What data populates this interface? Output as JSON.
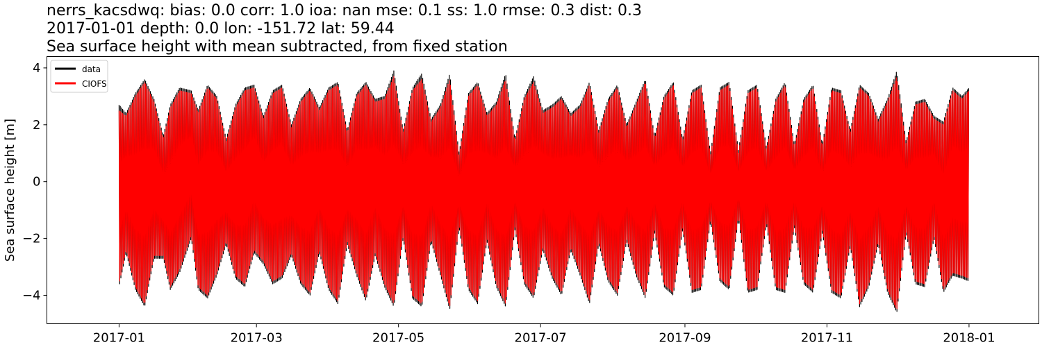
{
  "title_lines": [
    "nerrs_kacsdwq: bias: 0.0  corr: 1.0  ioa: nan  mse: 0.1  ss: 1.0  rmse: 0.3  dist: 0.3",
    "2017-01-01 depth: 0.0 lon: -151.72 lat: 59.44",
    "Sea surface height with mean subtracted, from fixed station"
  ],
  "chart_data": {
    "type": "line",
    "title": "nerrs_kacsdwq: bias: 0.0  corr: 1.0  ioa: nan  mse: 0.1  ss: 1.0  rmse: 0.3  dist: 0.3\n2017-01-01 depth: 0.0 lon: -151.72 lat: 59.44\nSea surface height with mean subtracted, from fixed station",
    "xlabel": "",
    "ylabel": "Sea surface height [m]",
    "x_ticks": [
      "2017-01",
      "2017-03",
      "2017-05",
      "2017-07",
      "2017-09",
      "2017-11",
      "2018-01"
    ],
    "x_range": [
      "2016-12-01",
      "2018-01-31"
    ],
    "y_ticks": [
      4,
      2,
      0,
      -2,
      -4
    ],
    "ylim": [
      -5,
      4.4
    ],
    "grid": false,
    "legend_position": "upper-left",
    "x_start": "2017-01-01",
    "x_end": "2018-01-01",
    "series": [
      {
        "name": "data",
        "color": "#000000",
        "envelope_dates": [
          "2017-01-01",
          "2017-01-04",
          "2017-01-08",
          "2017-01-12",
          "2017-01-16",
          "2017-01-20",
          "2017-01-23",
          "2017-01-27",
          "2017-02-01",
          "2017-02-04",
          "2017-02-08",
          "2017-02-12",
          "2017-02-16",
          "2017-02-20",
          "2017-02-24",
          "2017-02-28",
          "2017-03-04",
          "2017-03-08",
          "2017-03-12",
          "2017-03-16",
          "2017-03-20",
          "2017-03-24",
          "2017-03-28",
          "2017-04-01",
          "2017-04-05",
          "2017-04-09",
          "2017-04-13",
          "2017-04-17",
          "2017-04-21",
          "2017-04-25",
          "2017-04-29",
          "2017-05-03",
          "2017-05-07",
          "2017-05-11",
          "2017-05-15",
          "2017-05-19",
          "2017-05-23",
          "2017-05-27",
          "2017-05-31",
          "2017-06-04",
          "2017-06-08",
          "2017-06-12",
          "2017-06-16",
          "2017-06-20",
          "2017-06-24",
          "2017-06-28",
          "2017-07-02",
          "2017-07-06",
          "2017-07-10",
          "2017-07-14",
          "2017-07-18",
          "2017-07-22",
          "2017-07-26",
          "2017-07-30",
          "2017-08-03",
          "2017-08-07",
          "2017-08-11",
          "2017-08-15",
          "2017-08-19",
          "2017-08-23",
          "2017-08-27",
          "2017-08-31",
          "2017-09-04",
          "2017-09-08",
          "2017-09-12",
          "2017-09-16",
          "2017-09-20",
          "2017-09-24",
          "2017-09-28",
          "2017-10-02",
          "2017-10-06",
          "2017-10-10",
          "2017-10-14",
          "2017-10-18",
          "2017-10-22",
          "2017-10-26",
          "2017-10-30",
          "2017-11-03",
          "2017-11-07",
          "2017-11-11",
          "2017-11-15",
          "2017-11-19",
          "2017-11-23",
          "2017-11-27",
          "2017-12-01",
          "2017-12-05",
          "2017-12-09",
          "2017-12-13",
          "2017-12-17",
          "2017-12-21",
          "2017-12-25",
          "2017-12-29",
          "2018-01-01"
        ],
        "envelope_max": [
          2.7,
          2.4,
          3.1,
          3.6,
          2.9,
          1.6,
          2.7,
          3.3,
          3.2,
          2.5,
          3.4,
          3.0,
          1.5,
          2.7,
          3.3,
          3.4,
          2.3,
          3.2,
          3.4,
          2.0,
          2.9,
          3.3,
          2.6,
          3.3,
          3.5,
          1.8,
          3.1,
          3.5,
          2.9,
          3.0,
          3.9,
          1.8,
          3.3,
          3.8,
          2.2,
          2.7,
          3.8,
          1.0,
          3.1,
          3.5,
          2.4,
          2.8,
          3.8,
          1.5,
          3.0,
          3.7,
          2.5,
          2.7,
          3.0,
          2.4,
          2.7,
          3.5,
          1.8,
          2.9,
          3.4,
          2.0,
          2.8,
          3.6,
          1.6,
          3.0,
          3.5,
          1.5,
          3.2,
          3.4,
          1.0,
          3.3,
          3.5,
          1.1,
          3.2,
          3.4,
          1.2,
          2.9,
          3.5,
          1.3,
          2.9,
          3.4,
          1.3,
          3.3,
          3.2,
          1.8,
          3.4,
          3.1,
          2.2,
          2.9,
          3.9,
          1.4,
          2.8,
          2.9,
          2.3,
          2.1,
          3.3,
          3.0,
          3.3
        ],
        "envelope_min": [
          -3.7,
          -2.5,
          -3.8,
          -4.4,
          -2.7,
          -2.7,
          -3.8,
          -3.2,
          -2.0,
          -3.8,
          -4.1,
          -3.3,
          -2.2,
          -3.4,
          -3.7,
          -2.5,
          -2.9,
          -3.6,
          -3.4,
          -2.6,
          -3.6,
          -4.0,
          -2.5,
          -3.8,
          -4.3,
          -2.2,
          -3.3,
          -4.2,
          -2.6,
          -3.7,
          -4.4,
          -2.0,
          -4.1,
          -4.4,
          -2.1,
          -3.3,
          -4.5,
          -1.6,
          -3.8,
          -4.3,
          -2.1,
          -3.7,
          -4.4,
          -1.7,
          -3.6,
          -4.1,
          -2.4,
          -3.4,
          -4.0,
          -2.4,
          -3.3,
          -4.3,
          -2.2,
          -3.5,
          -4.0,
          -2.1,
          -3.3,
          -4.1,
          -1.8,
          -3.7,
          -4.0,
          -1.7,
          -3.9,
          -3.8,
          -1.4,
          -3.5,
          -3.8,
          -1.3,
          -3.9,
          -3.8,
          -1.5,
          -3.8,
          -3.9,
          -1.6,
          -3.6,
          -3.9,
          -1.8,
          -3.9,
          -4.1,
          -2.3,
          -4.4,
          -3.7,
          -2.2,
          -3.9,
          -4.6,
          -1.8,
          -3.6,
          -3.7,
          -2.0,
          -3.9,
          -3.3,
          -3.4,
          -3.5
        ]
      },
      {
        "name": "CIOFS",
        "color": "#ff0000",
        "envelope_dates": [
          "2017-01-01",
          "2017-01-04",
          "2017-01-08",
          "2017-01-12",
          "2017-01-16",
          "2017-01-20",
          "2017-01-23",
          "2017-01-27",
          "2017-02-01",
          "2017-02-04",
          "2017-02-08",
          "2017-02-12",
          "2017-02-16",
          "2017-02-20",
          "2017-02-24",
          "2017-02-28",
          "2017-03-04",
          "2017-03-08",
          "2017-03-12",
          "2017-03-16",
          "2017-03-20",
          "2017-03-24",
          "2017-03-28",
          "2017-04-01",
          "2017-04-05",
          "2017-04-09",
          "2017-04-13",
          "2017-04-17",
          "2017-04-21",
          "2017-04-25",
          "2017-04-29",
          "2017-05-03",
          "2017-05-07",
          "2017-05-11",
          "2017-05-15",
          "2017-05-19",
          "2017-05-23",
          "2017-05-27",
          "2017-05-31",
          "2017-06-04",
          "2017-06-08",
          "2017-06-12",
          "2017-06-16",
          "2017-06-20",
          "2017-06-24",
          "2017-06-28",
          "2017-07-02",
          "2017-07-06",
          "2017-07-10",
          "2017-07-14",
          "2017-07-18",
          "2017-07-22",
          "2017-07-26",
          "2017-07-30",
          "2017-08-03",
          "2017-08-07",
          "2017-08-11",
          "2017-08-15",
          "2017-08-19",
          "2017-08-23",
          "2017-08-27",
          "2017-08-31",
          "2017-09-04",
          "2017-09-08",
          "2017-09-12",
          "2017-09-16",
          "2017-09-20",
          "2017-09-24",
          "2017-09-28",
          "2017-10-02",
          "2017-10-06",
          "2017-10-10",
          "2017-10-14",
          "2017-10-18",
          "2017-10-22",
          "2017-10-26",
          "2017-10-30",
          "2017-11-03",
          "2017-11-07",
          "2017-11-11",
          "2017-11-15",
          "2017-11-19",
          "2017-11-23",
          "2017-11-27",
          "2017-12-01",
          "2017-12-05",
          "2017-12-09",
          "2017-12-13",
          "2017-12-17",
          "2017-12-21",
          "2017-12-25",
          "2017-12-29",
          "2018-01-01"
        ],
        "envelope_max": [
          2.5,
          2.3,
          3.0,
          3.5,
          2.8,
          1.5,
          2.6,
          3.2,
          3.1,
          2.4,
          3.3,
          2.9,
          1.4,
          2.6,
          3.2,
          3.3,
          2.2,
          3.1,
          3.3,
          1.9,
          2.8,
          3.2,
          2.5,
          3.2,
          3.4,
          1.7,
          3.0,
          3.4,
          2.8,
          2.9,
          3.7,
          1.7,
          3.2,
          3.6,
          2.1,
          2.6,
          3.6,
          0.9,
          3.0,
          3.4,
          2.3,
          2.7,
          3.6,
          1.4,
          2.9,
          3.5,
          2.4,
          2.6,
          2.9,
          2.3,
          2.6,
          3.4,
          1.7,
          2.8,
          3.3,
          1.9,
          2.7,
          3.5,
          1.5,
          2.9,
          3.4,
          1.4,
          3.1,
          3.3,
          0.9,
          3.2,
          3.4,
          1.0,
          3.1,
          3.3,
          1.1,
          2.8,
          3.4,
          1.2,
          2.8,
          3.3,
          1.2,
          3.2,
          3.1,
          1.7,
          3.3,
          3.0,
          2.1,
          2.8,
          3.7,
          1.3,
          2.7,
          2.8,
          2.2,
          2.0,
          3.2,
          2.9,
          3.2
        ],
        "envelope_min": [
          -3.6,
          -2.4,
          -3.7,
          -4.3,
          -2.6,
          -2.6,
          -3.7,
          -3.1,
          -1.9,
          -3.7,
          -4.0,
          -3.2,
          -2.1,
          -3.3,
          -3.6,
          -2.4,
          -2.8,
          -3.5,
          -3.3,
          -2.5,
          -3.5,
          -3.9,
          -2.4,
          -3.7,
          -4.2,
          -2.1,
          -3.2,
          -4.1,
          -2.5,
          -3.6,
          -4.3,
          -1.9,
          -4.0,
          -4.3,
          -2.0,
          -3.2,
          -4.4,
          -1.5,
          -3.7,
          -4.2,
          -2.0,
          -3.6,
          -4.3,
          -1.6,
          -3.5,
          -4.0,
          -2.3,
          -3.3,
          -3.9,
          -2.3,
          -3.2,
          -4.2,
          -2.1,
          -3.4,
          -3.9,
          -2.0,
          -3.2,
          -4.0,
          -1.7,
          -3.6,
          -3.9,
          -1.6,
          -3.8,
          -3.7,
          -1.3,
          -3.4,
          -3.7,
          -1.2,
          -3.8,
          -3.7,
          -1.4,
          -3.7,
          -3.8,
          -1.5,
          -3.5,
          -3.8,
          -1.7,
          -3.8,
          -4.0,
          -2.2,
          -4.3,
          -3.6,
          -2.1,
          -3.8,
          -4.5,
          -1.7,
          -3.5,
          -3.6,
          -1.9,
          -3.8,
          -3.2,
          -3.3,
          -3.4
        ]
      }
    ]
  }
}
